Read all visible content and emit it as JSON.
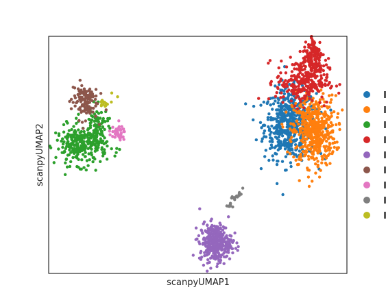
{
  "chart_data": {
    "type": "scatter",
    "title": "",
    "xlabel": "scanpyUMAP1",
    "ylabel": "scanpyUMAP2",
    "xlim": [
      0,
      100
    ],
    "ylim": [
      0,
      100
    ],
    "grid": false,
    "ticks": "hidden",
    "legend": "right, outside plot area (labels cropped)",
    "series": [
      {
        "color": "#1f77b4",
        "clusters": [
          {
            "cx": 81,
            "cy": 63,
            "sx": 4.3,
            "sy": 7.4,
            "n": 560
          }
        ]
      },
      {
        "color": "#ff7f0e",
        "clusters": [
          {
            "cx": 89,
            "cy": 60,
            "sx": 3.6,
            "sy": 7.4,
            "n": 500
          }
        ]
      },
      {
        "color": "#2ca02c",
        "clusters": [
          {
            "cx": 11,
            "cy": 54,
            "sx": 4.3,
            "sy": 4.2,
            "n": 270
          },
          {
            "cx": 16,
            "cy": 62,
            "sx": 2.0,
            "sy": 4.0,
            "n": 90
          }
        ]
      },
      {
        "color": "#d62728",
        "clusters": [
          {
            "cx": 85,
            "cy": 81,
            "sx": 4.4,
            "sy": 4.8,
            "n": 260
          },
          {
            "cx": 89,
            "cy": 91,
            "sx": 1.8,
            "sy": 5.0,
            "n": 130
          }
        ]
      },
      {
        "color": "#9467bd",
        "clusters": [
          {
            "cx": 56,
            "cy": 13,
            "sx": 2.7,
            "sy": 4.0,
            "n": 340
          }
        ]
      },
      {
        "color": "#8c564b",
        "clusters": [
          {
            "cx": 12,
            "cy": 73,
            "sx": 2.2,
            "sy": 4.0,
            "n": 120
          }
        ]
      },
      {
        "color": "#e377c2",
        "clusters": [
          {
            "cx": 23,
            "cy": 59,
            "sx": 1.4,
            "sy": 1.5,
            "n": 40
          }
        ]
      },
      {
        "color": "#7f7f7f",
        "clusters": [
          {
            "cx": 62,
            "cy": 31,
            "sx": 0.6,
            "sy": 3.2,
            "n": 22,
            "rot": -0.6
          }
        ]
      },
      {
        "color": "#bcbd22",
        "clusters": [
          {
            "cx": 19,
            "cy": 72,
            "sx": 0.9,
            "sy": 2.0,
            "n": 14,
            "rot": -0.9
          }
        ]
      }
    ]
  }
}
